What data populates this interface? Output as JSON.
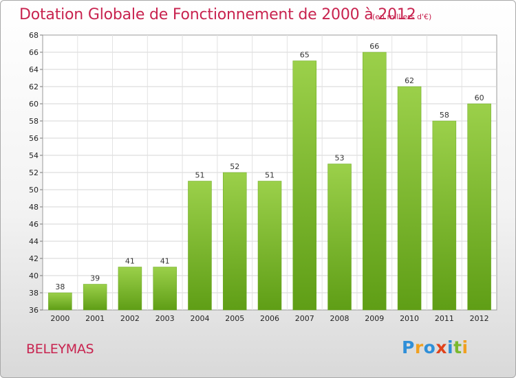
{
  "chart_data": {
    "type": "bar",
    "title": "Dotation Globale de Fonctionnement de 2000 à 2012",
    "subtitle": "(en milliers d'€)",
    "categories": [
      "2000",
      "2001",
      "2002",
      "2003",
      "2004",
      "2005",
      "2006",
      "2007",
      "2008",
      "2009",
      "2010",
      "2011",
      "2012"
    ],
    "values": [
      38,
      39,
      41,
      41,
      51,
      52,
      51,
      65,
      53,
      66,
      62,
      58,
      60
    ],
    "ylim": [
      36,
      68
    ],
    "yticks": [
      36,
      38,
      40,
      42,
      44,
      46,
      48,
      50,
      52,
      54,
      56,
      58,
      60,
      62,
      64,
      66,
      68
    ],
    "grid": true,
    "bar_color": "#7fbf2e"
  },
  "commune": "BELEYMAS",
  "logo": {
    "letters": [
      {
        "ch": "P",
        "color": "#2f8fd8"
      },
      {
        "ch": "r",
        "color": "#f0a020"
      },
      {
        "ch": "o",
        "color": "#2f8fd8"
      },
      {
        "ch": "x",
        "color": "#e0431c"
      },
      {
        "ch": "i",
        "color": "#2f8fd8"
      },
      {
        "ch": "t",
        "color": "#7ab82e"
      },
      {
        "ch": "i",
        "color": "#f0a020"
      }
    ]
  }
}
